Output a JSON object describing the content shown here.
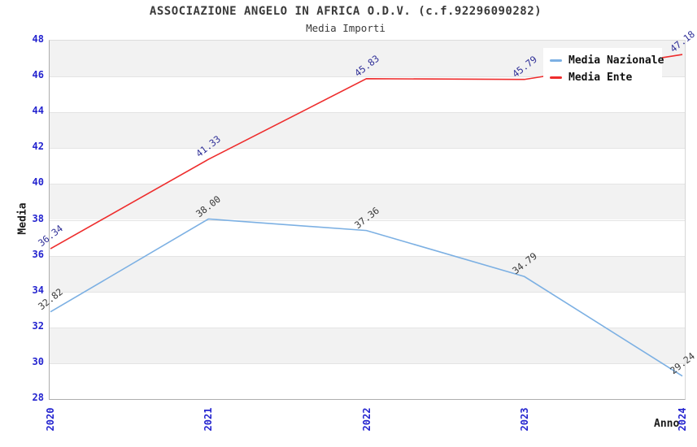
{
  "title": "ASSOCIAZIONE ANGELO IN AFRICA O.D.V. (c.f.92296090282)",
  "subtitle": "Media Importi",
  "legend": {
    "items": [
      {
        "label": "Media Nazionale",
        "color": "#7cb0e3"
      },
      {
        "label": "Media Ente",
        "color": "#ee2d2d"
      }
    ]
  },
  "axes": {
    "y_label": "Media",
    "x_label": "Anno",
    "y_ticks": [
      "48",
      "46",
      "44",
      "42",
      "40",
      "38",
      "36",
      "34",
      "32",
      "30",
      "28"
    ],
    "x_ticks": [
      "2020",
      "2021",
      "2022",
      "2023",
      "2024"
    ]
  },
  "colors": {
    "tick_text": "#2424cf",
    "band_gray": "#f2f2f2",
    "gridline": "#e4e4e4",
    "nazionale_line": "#7cb0e3",
    "ente_line": "#ee2d2d",
    "nazionale_label_text": "#3a3a3a",
    "ente_label_text": "#333399"
  },
  "chart_data": {
    "type": "line",
    "title": "Media Importi",
    "xlabel": "Anno",
    "ylabel": "Media",
    "x": [
      2020,
      2021,
      2022,
      2023,
      2024
    ],
    "ylim": [
      28,
      48
    ],
    "ytick_step": 2,
    "grid": "horizontal-bands-alternating",
    "legend_position": "top-right",
    "series": [
      {
        "name": "Media Nazionale",
        "color": "#7cb0e3",
        "label_color": "#3a3a3a",
        "values": [
          32.82,
          38.0,
          37.36,
          34.79,
          29.24
        ],
        "labels": [
          "32.82",
          "38.00",
          "37.36",
          "34.79",
          "29.24"
        ]
      },
      {
        "name": "Media Ente",
        "color": "#ee2d2d",
        "label_color": "#333399",
        "values": [
          36.34,
          41.33,
          45.83,
          45.79,
          47.18
        ],
        "labels": [
          "36.34",
          "41.33",
          "45.83",
          "45.79",
          "47.18"
        ]
      }
    ]
  }
}
